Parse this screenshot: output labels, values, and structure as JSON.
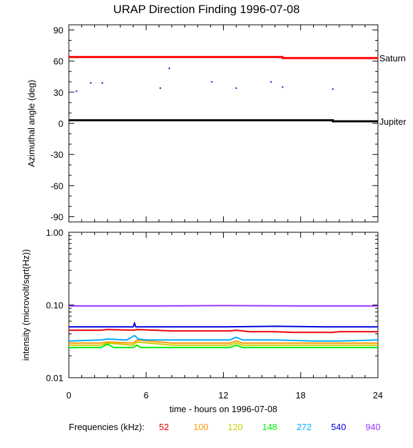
{
  "title": "URAP Direction Finding  1996-07-08",
  "chart_data": [
    {
      "type": "scatter",
      "title": "URAP Direction Finding  1996-07-08",
      "ylabel": "Azimuthal angle (deg)",
      "xlim": [
        0,
        24
      ],
      "ylim": [
        -95,
        95
      ],
      "xticks": [
        0,
        6,
        12,
        18,
        24
      ],
      "yticks": [
        90,
        60,
        30,
        0,
        -30,
        -60,
        -90
      ],
      "ytick_labels": [
        "90",
        "60",
        "30",
        "0",
        "-30",
        "-60",
        "-90"
      ],
      "series": [
        {
          "name": "Saturn",
          "color": "#ff0000",
          "x": [
            0,
            16.6,
            16.6,
            24
          ],
          "y": [
            64,
            64,
            63,
            63
          ]
        },
        {
          "name": "Jupiter",
          "color": "#000000",
          "x": [
            0,
            20.5,
            20.5,
            24
          ],
          "y": [
            3,
            3,
            2,
            2
          ]
        }
      ],
      "points": {
        "color": "#0000cc",
        "x": [
          0.6,
          1.7,
          2.6,
          7.1,
          7.8,
          11.1,
          13.0,
          15.7,
          16.6,
          20.5
        ],
        "y": [
          31,
          39,
          39,
          34,
          53,
          40,
          34,
          40,
          35,
          33
        ]
      }
    },
    {
      "type": "line",
      "ylabel": "intensity (microvolt/sqrt(Hz))",
      "xlabel": "time - hours on 1996-07-08",
      "xlim": [
        0,
        24
      ],
      "ylim": [
        0.01,
        1.0
      ],
      "yscale": "log",
      "xticks": [
        0,
        6,
        12,
        18,
        24
      ],
      "xtick_labels": [
        "0",
        "6",
        "12",
        "18",
        "24"
      ],
      "yticks": [
        1.0,
        0.1,
        0.01
      ],
      "ytick_labels": [
        "1.00",
        "0.10",
        "0.01"
      ],
      "legend_label": "Frequencies (kHz):",
      "series": [
        {
          "name": "52",
          "color": "#ee0000",
          "x": [
            0,
            2.5,
            3.0,
            5.0,
            5.3,
            8,
            12.5,
            13.0,
            13.5,
            14,
            16,
            17.5,
            19,
            20.5,
            21,
            24
          ],
          "y": [
            0.045,
            0.045,
            0.046,
            0.045,
            0.046,
            0.044,
            0.044,
            0.045,
            0.044,
            0.043,
            0.043,
            0.042,
            0.042,
            0.042,
            0.043,
            0.043
          ]
        },
        {
          "name": "100",
          "color": "#ff9900",
          "x": [
            0,
            2.5,
            3.0,
            5.0,
            5.3,
            8,
            12.5,
            13.0,
            13.5,
            16,
            19,
            21,
            24
          ],
          "y": [
            0.03,
            0.03,
            0.031,
            0.03,
            0.033,
            0.03,
            0.03,
            0.032,
            0.03,
            0.03,
            0.03,
            0.03,
            0.03
          ]
        },
        {
          "name": "120",
          "color": "#cccc00",
          "x": [
            0,
            2.5,
            3.0,
            5.0,
            5.3,
            8,
            12.5,
            13.0,
            13.5,
            16,
            19,
            21,
            24
          ],
          "y": [
            0.028,
            0.028,
            0.03,
            0.028,
            0.031,
            0.028,
            0.028,
            0.03,
            0.028,
            0.028,
            0.028,
            0.028,
            0.028
          ]
        },
        {
          "name": "148",
          "color": "#00ee00",
          "x": [
            0,
            2.2,
            2.5,
            3.0,
            3.5,
            5.0,
            5.3,
            5.6,
            8,
            12.0,
            12.5,
            13.0,
            13.5,
            16,
            19,
            21,
            24
          ],
          "y": [
            0.026,
            0.026,
            0.026,
            0.029,
            0.026,
            0.026,
            0.028,
            0.026,
            0.026,
            0.026,
            0.026,
            0.028,
            0.026,
            0.026,
            0.026,
            0.026,
            0.026
          ]
        },
        {
          "name": "272",
          "color": "#00aaff",
          "x": [
            0,
            2.5,
            3.0,
            4.5,
            5.1,
            5.4,
            6,
            8,
            12.5,
            13.0,
            13.5,
            16,
            19,
            21,
            24
          ],
          "y": [
            0.032,
            0.033,
            0.034,
            0.033,
            0.038,
            0.034,
            0.033,
            0.033,
            0.033,
            0.036,
            0.033,
            0.033,
            0.032,
            0.032,
            0.033
          ]
        },
        {
          "name": "540",
          "color": "#0000dd",
          "x": [
            0,
            5.0,
            5.1,
            5.2,
            8,
            12,
            16,
            20,
            24
          ],
          "y": [
            0.05,
            0.05,
            0.056,
            0.05,
            0.05,
            0.05,
            0.051,
            0.05,
            0.05
          ]
        },
        {
          "name": "940",
          "color": "#9933ff",
          "x": [
            0,
            6,
            12,
            18,
            24
          ],
          "y": [
            0.097,
            0.097,
            0.098,
            0.097,
            0.097
          ]
        }
      ]
    }
  ]
}
